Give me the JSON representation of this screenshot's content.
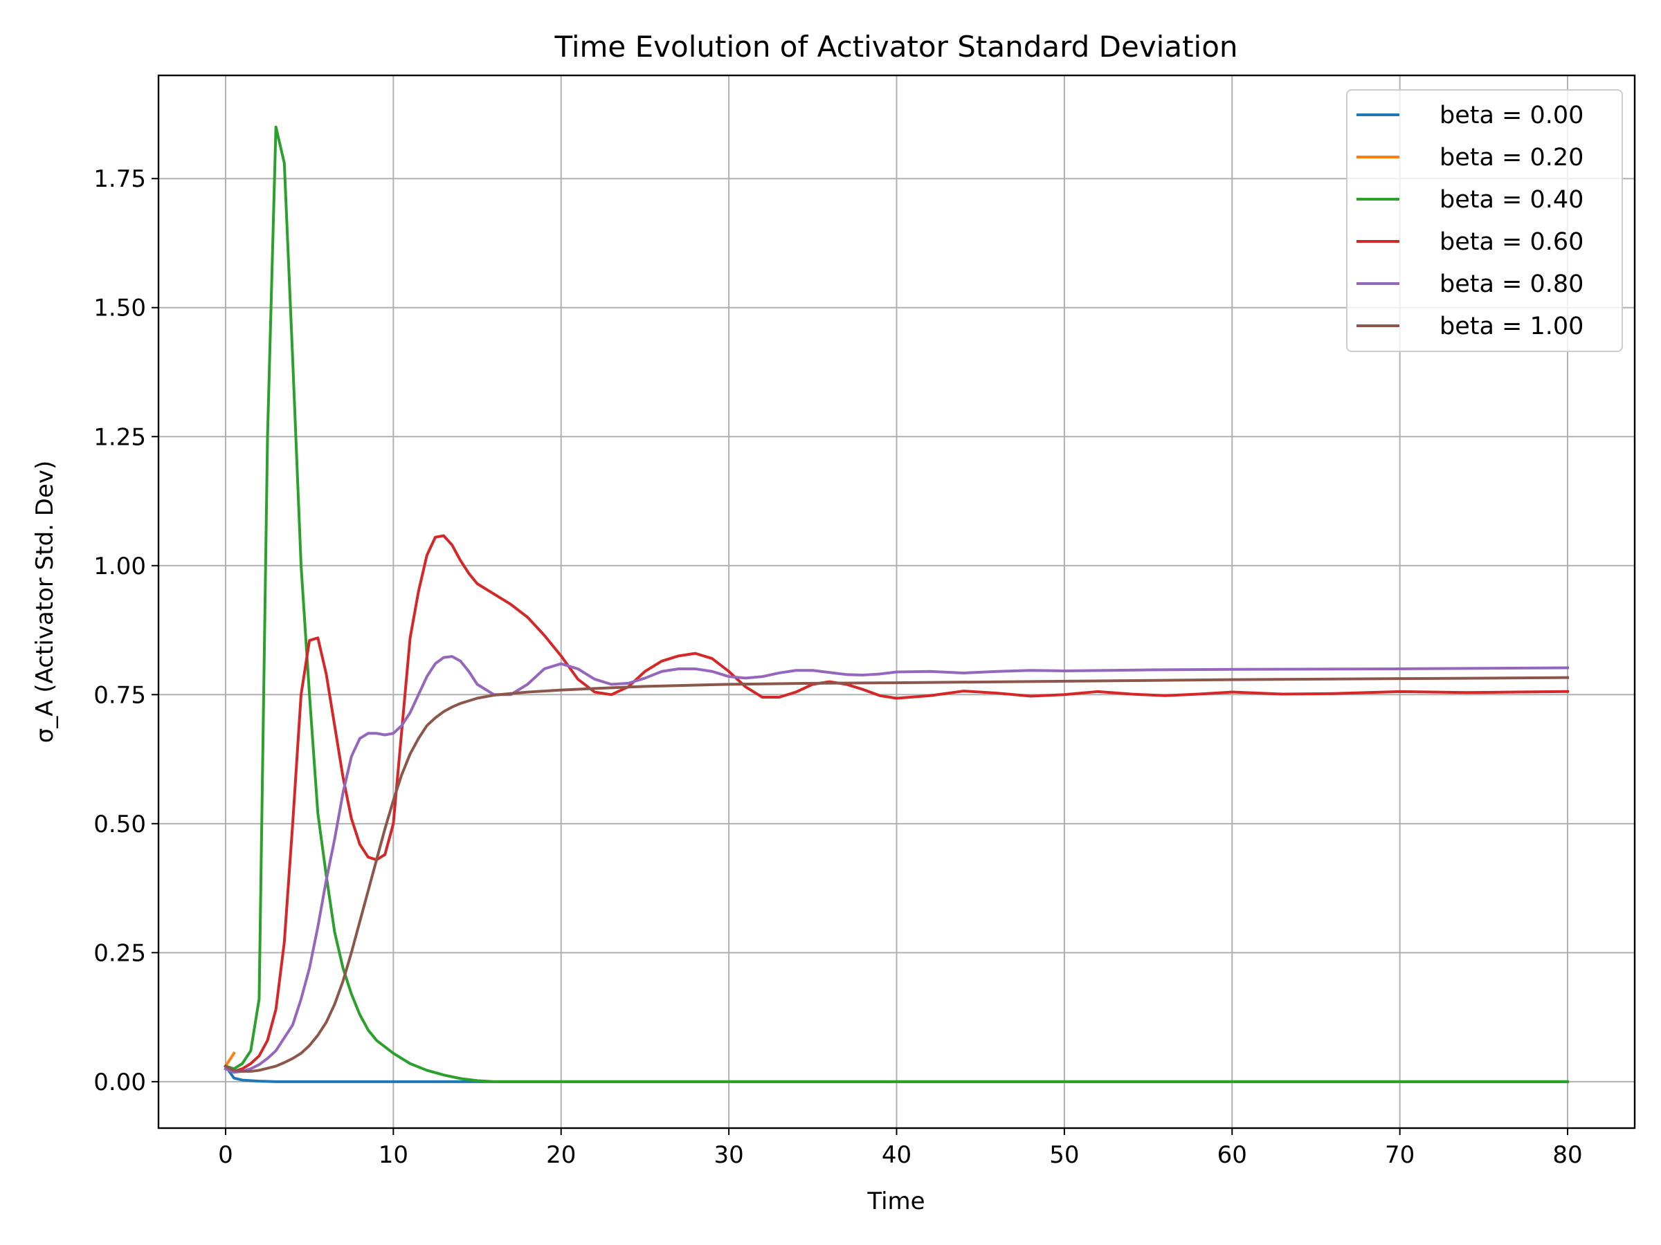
{
  "chart_data": {
    "type": "line",
    "title": "Time Evolution of Activator Standard Deviation",
    "xlabel": "Time",
    "ylabel": "σ_A (Activator Std. Dev)",
    "xlim": [
      -4,
      84
    ],
    "ylim": [
      -0.09,
      1.95
    ],
    "xticks": [
      0,
      10,
      20,
      30,
      40,
      50,
      60,
      70,
      80
    ],
    "yticks": [
      0.0,
      0.25,
      0.5,
      0.75,
      1.0,
      1.25,
      1.5,
      1.75
    ],
    "xtick_labels": [
      "0",
      "10",
      "20",
      "30",
      "40",
      "50",
      "60",
      "70",
      "80"
    ],
    "ytick_labels": [
      "0.00",
      "0.25",
      "0.50",
      "0.75",
      "1.00",
      "1.25",
      "1.50",
      "1.75"
    ],
    "grid": true,
    "legend_position": "top-right",
    "series": [
      {
        "name": "beta = 0.00",
        "color": "#1f77b4",
        "x": [
          0,
          0.5,
          1,
          2,
          3,
          5,
          10,
          20,
          40,
          60,
          80
        ],
        "y": [
          0.03,
          0.007,
          0.003,
          0.001,
          0.0,
          0.0,
          0.0,
          0.0,
          0.0,
          0.0,
          0.0
        ]
      },
      {
        "name": "beta = 0.20",
        "color": "#ff7f0e",
        "x": [
          0,
          0.5
        ],
        "y": [
          0.03,
          0.055
        ]
      },
      {
        "name": "beta = 0.40",
        "color": "#2ca02c",
        "x": [
          0,
          0.5,
          1,
          1.5,
          2,
          2.5,
          3,
          3.5,
          4,
          4.5,
          5,
          5.5,
          6,
          6.5,
          7,
          7.5,
          8,
          8.5,
          9,
          10,
          11,
          12,
          13,
          14,
          15,
          16,
          20,
          30,
          40,
          50,
          60,
          70,
          80
        ],
        "y": [
          0.03,
          0.025,
          0.035,
          0.06,
          0.16,
          1.25,
          1.85,
          1.78,
          1.4,
          1.0,
          0.75,
          0.52,
          0.4,
          0.29,
          0.22,
          0.17,
          0.13,
          0.1,
          0.08,
          0.055,
          0.035,
          0.022,
          0.013,
          0.006,
          0.002,
          0.0,
          0.0,
          0.0,
          0.0,
          0.0,
          0.0,
          0.0,
          0.0
        ]
      },
      {
        "name": "beta = 0.60",
        "color": "#d62728",
        "x": [
          0,
          0.5,
          1,
          1.5,
          2,
          2.5,
          3,
          3.5,
          4,
          4.5,
          5,
          5.5,
          6,
          6.5,
          7,
          7.5,
          8,
          8.5,
          9,
          9.5,
          10,
          10.5,
          11,
          11.5,
          12,
          12.5,
          13,
          13.5,
          14,
          14.5,
          15,
          16,
          17,
          18,
          19,
          20,
          21,
          22,
          23,
          24,
          25,
          26,
          27,
          28,
          29,
          30,
          31,
          32,
          33,
          34,
          35,
          36,
          37,
          38,
          39,
          40,
          42,
          44,
          46,
          48,
          50,
          52,
          54,
          56,
          58,
          60,
          63,
          66,
          70,
          74,
          77,
          80
        ],
        "y": [
          0.025,
          0.02,
          0.025,
          0.035,
          0.05,
          0.08,
          0.14,
          0.27,
          0.5,
          0.75,
          0.855,
          0.86,
          0.79,
          0.69,
          0.59,
          0.51,
          0.46,
          0.435,
          0.43,
          0.44,
          0.5,
          0.68,
          0.86,
          0.95,
          1.02,
          1.055,
          1.058,
          1.04,
          1.01,
          0.985,
          0.965,
          0.945,
          0.925,
          0.9,
          0.865,
          0.825,
          0.78,
          0.755,
          0.75,
          0.765,
          0.795,
          0.815,
          0.825,
          0.83,
          0.82,
          0.795,
          0.765,
          0.745,
          0.745,
          0.755,
          0.77,
          0.775,
          0.77,
          0.76,
          0.748,
          0.743,
          0.748,
          0.757,
          0.753,
          0.747,
          0.75,
          0.756,
          0.751,
          0.748,
          0.751,
          0.755,
          0.751,
          0.752,
          0.756,
          0.754,
          0.755,
          0.756
        ]
      },
      {
        "name": "beta = 0.80",
        "color": "#9467bd",
        "x": [
          0,
          0.5,
          1,
          1.5,
          2,
          2.5,
          3,
          3.5,
          4,
          4.5,
          5,
          5.5,
          6,
          6.5,
          7,
          7.5,
          8,
          8.5,
          9,
          9.5,
          10,
          10.5,
          11,
          11.5,
          12,
          12.5,
          13,
          13.5,
          14,
          14.5,
          15,
          16,
          17,
          18,
          19,
          20,
          21,
          22,
          23,
          24,
          25,
          26,
          27,
          28,
          29,
          30,
          31,
          32,
          33,
          34,
          35,
          36,
          37,
          38,
          39,
          40,
          42,
          44,
          46,
          48,
          50,
          55,
          60,
          70,
          80
        ],
        "y": [
          0.025,
          0.018,
          0.02,
          0.025,
          0.033,
          0.045,
          0.06,
          0.085,
          0.11,
          0.16,
          0.22,
          0.3,
          0.39,
          0.47,
          0.56,
          0.63,
          0.665,
          0.675,
          0.675,
          0.672,
          0.675,
          0.69,
          0.715,
          0.75,
          0.785,
          0.81,
          0.822,
          0.824,
          0.815,
          0.795,
          0.77,
          0.75,
          0.75,
          0.77,
          0.8,
          0.81,
          0.8,
          0.78,
          0.77,
          0.772,
          0.782,
          0.795,
          0.8,
          0.8,
          0.795,
          0.785,
          0.782,
          0.785,
          0.792,
          0.797,
          0.797,
          0.793,
          0.789,
          0.788,
          0.79,
          0.794,
          0.795,
          0.792,
          0.795,
          0.797,
          0.796,
          0.798,
          0.799,
          0.8,
          0.802
        ]
      },
      {
        "name": "beta = 1.00",
        "color": "#8c564b",
        "x": [
          0,
          0.5,
          1,
          1.5,
          2,
          2.5,
          3,
          3.5,
          4,
          4.5,
          5,
          5.5,
          6,
          6.5,
          7,
          7.5,
          8,
          8.5,
          9,
          9.5,
          10,
          10.5,
          11,
          11.5,
          12,
          12.5,
          13,
          13.5,
          14,
          15,
          16,
          17,
          18,
          19,
          20,
          22,
          25,
          30,
          35,
          40,
          50,
          60,
          70,
          80
        ],
        "y": [
          0.03,
          0.022,
          0.02,
          0.02,
          0.022,
          0.026,
          0.03,
          0.037,
          0.045,
          0.055,
          0.07,
          0.09,
          0.115,
          0.15,
          0.195,
          0.25,
          0.31,
          0.37,
          0.43,
          0.49,
          0.545,
          0.595,
          0.635,
          0.665,
          0.69,
          0.705,
          0.717,
          0.726,
          0.733,
          0.743,
          0.749,
          0.752,
          0.755,
          0.757,
          0.759,
          0.762,
          0.766,
          0.77,
          0.772,
          0.773,
          0.776,
          0.779,
          0.781,
          0.783
        ]
      }
    ]
  }
}
